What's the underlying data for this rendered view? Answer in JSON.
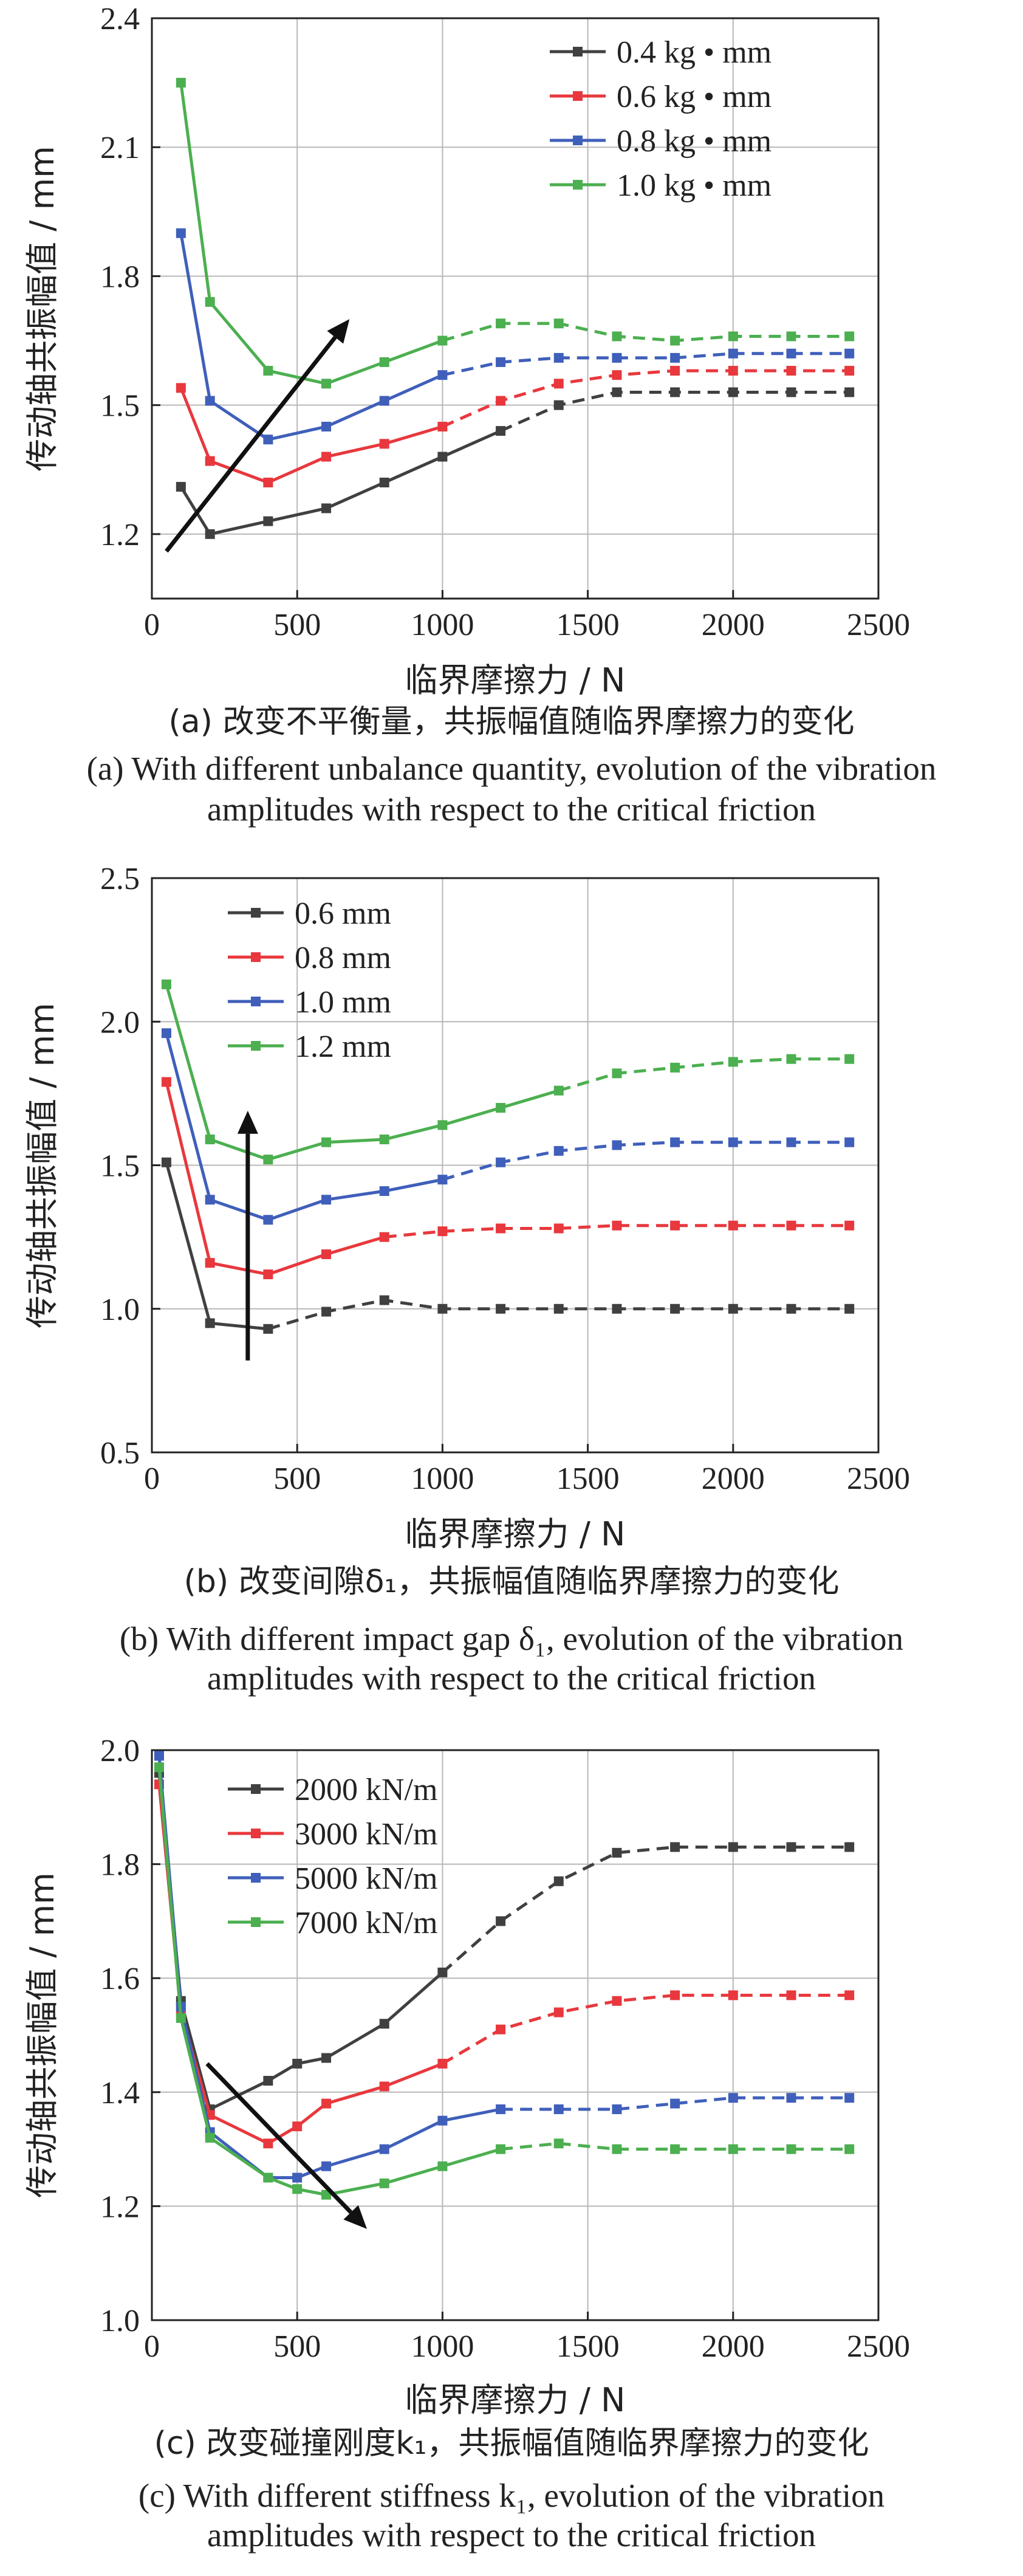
{
  "chart_data": [
    {
      "type": "line",
      "ylabel": "传动轴共振幅值 / mm",
      "xlabel": "临界摩擦力 / N",
      "xlim": [
        0,
        2500
      ],
      "ylim": [
        1.05,
        2.4
      ],
      "xticks": [
        0,
        500,
        1000,
        1500,
        2000,
        2500
      ],
      "yticks": [
        1.2,
        1.5,
        1.8,
        2.1,
        2.4
      ],
      "ytick_labels": [
        "1.2",
        "1.5",
        "1.8",
        "2.1",
        "2.4"
      ],
      "grid": true,
      "legend_position": "top-right",
      "trend_arrow": {
        "from": [
          50,
          1.16
        ],
        "to": [
          680,
          1.7
        ]
      },
      "caption_zh": "(a) 改变不平衡量，共振幅值随临界摩擦力的变化",
      "caption_en": [
        "(a) With different unbalance quantity, evolution of the vibration",
        "amplitudes with respect to the critical friction"
      ],
      "series": [
        {
          "name": "0.4 kg • mm",
          "color": "#404040",
          "x": [
            100,
            200,
            400,
            600,
            800,
            1000,
            1200,
            1400,
            1600,
            1800,
            2000,
            2200,
            2400
          ],
          "y": [
            1.31,
            1.2,
            1.23,
            1.26,
            1.32,
            1.38,
            1.44,
            1.5,
            1.53,
            1.53,
            1.53,
            1.53,
            1.53
          ],
          "solid_until_index": 6
        },
        {
          "name": "0.6 kg • mm",
          "color": "#e8383d",
          "x": [
            100,
            200,
            400,
            600,
            800,
            1000,
            1200,
            1400,
            1600,
            1800,
            2000,
            2200,
            2400
          ],
          "y": [
            1.54,
            1.37,
            1.32,
            1.38,
            1.41,
            1.45,
            1.51,
            1.55,
            1.57,
            1.58,
            1.58,
            1.58,
            1.58
          ],
          "solid_until_index": 5
        },
        {
          "name": "0.8 kg • mm",
          "color": "#3f5fba",
          "x": [
            100,
            200,
            400,
            600,
            800,
            1000,
            1200,
            1400,
            1600,
            1800,
            2000,
            2200,
            2400
          ],
          "y": [
            1.9,
            1.51,
            1.42,
            1.45,
            1.51,
            1.57,
            1.6,
            1.61,
            1.61,
            1.61,
            1.62,
            1.62,
            1.62
          ],
          "solid_until_index": 5
        },
        {
          "name": "1.0 kg • mm",
          "color": "#4caf50",
          "x": [
            100,
            200,
            400,
            600,
            800,
            1000,
            1200,
            1400,
            1600,
            1800,
            2000,
            2200,
            2400
          ],
          "y": [
            2.25,
            1.74,
            1.58,
            1.55,
            1.6,
            1.65,
            1.69,
            1.69,
            1.66,
            1.65,
            1.66,
            1.66,
            1.66
          ],
          "solid_until_index": 5
        }
      ]
    },
    {
      "type": "line",
      "ylabel": "传动轴共振幅值 / mm",
      "xlabel": "临界摩擦力 / N",
      "xlim": [
        0,
        2500
      ],
      "ylim": [
        0.5,
        2.5
      ],
      "xticks": [
        0,
        500,
        1000,
        1500,
        2000,
        2500
      ],
      "yticks": [
        0.5,
        1.0,
        1.5,
        2.0,
        2.5
      ],
      "ytick_labels": [
        "0.5",
        "1.0",
        "1.5",
        "2.0",
        "2.5"
      ],
      "grid": true,
      "legend_position": "top-left",
      "trend_arrow": {
        "from": [
          330,
          0.82
        ],
        "to": [
          330,
          1.69
        ]
      },
      "caption_zh": "(b) 改变间隙δ₁，共振幅值随临界摩擦力的变化",
      "caption_en": [
        "(b) With different impact gap δ₁, evolution of the vibration",
        "amplitudes with respect to the critical friction"
      ],
      "series": [
        {
          "name": "0.6 mm",
          "color": "#404040",
          "x": [
            50,
            200,
            400,
            600,
            800,
            1000,
            1200,
            1400,
            1600,
            1800,
            2000,
            2200,
            2400
          ],
          "y": [
            1.51,
            0.95,
            0.93,
            0.99,
            1.03,
            1.0,
            1.0,
            1.0,
            1.0,
            1.0,
            1.0,
            1.0,
            1.0
          ],
          "solid_until_index": 2
        },
        {
          "name": "0.8 mm",
          "color": "#e8383d",
          "x": [
            50,
            200,
            400,
            600,
            800,
            1000,
            1200,
            1400,
            1600,
            1800,
            2000,
            2200,
            2400
          ],
          "y": [
            1.79,
            1.16,
            1.12,
            1.19,
            1.25,
            1.27,
            1.28,
            1.28,
            1.29,
            1.29,
            1.29,
            1.29,
            1.29
          ],
          "solid_until_index": 4
        },
        {
          "name": "1.0 mm",
          "color": "#3f5fba",
          "x": [
            50,
            200,
            400,
            600,
            800,
            1000,
            1200,
            1400,
            1600,
            1800,
            2000,
            2200,
            2400
          ],
          "y": [
            1.96,
            1.38,
            1.31,
            1.38,
            1.41,
            1.45,
            1.51,
            1.55,
            1.57,
            1.58,
            1.58,
            1.58,
            1.58
          ],
          "solid_until_index": 5
        },
        {
          "name": "1.2 mm",
          "color": "#4caf50",
          "x": [
            50,
            200,
            400,
            600,
            800,
            1000,
            1200,
            1400,
            1600,
            1800,
            2000,
            2200,
            2400
          ],
          "y": [
            2.13,
            1.59,
            1.52,
            1.58,
            1.59,
            1.64,
            1.7,
            1.76,
            1.82,
            1.84,
            1.86,
            1.87,
            1.87
          ],
          "solid_until_index": 7
        }
      ]
    },
    {
      "type": "line",
      "ylabel": "传动轴共振幅值 / mm",
      "xlabel": "临界摩擦力 / N",
      "xlim": [
        0,
        2500
      ],
      "ylim": [
        1.0,
        2.0
      ],
      "xticks": [
        0,
        500,
        1000,
        1500,
        2000,
        2500
      ],
      "yticks": [
        1.0,
        1.2,
        1.4,
        1.6,
        1.8,
        2.0
      ],
      "ytick_labels": [
        "1.0",
        "1.2",
        "1.4",
        "1.6",
        "1.8",
        "2.0"
      ],
      "grid": true,
      "legend_position": "top-left",
      "trend_arrow": {
        "from": [
          190,
          1.45
        ],
        "to": [
          740,
          1.16
        ]
      },
      "caption_zh": "(c) 改变碰撞刚度k₁，共振幅值随临界摩擦力的变化",
      "caption_en": [
        "(c) With different stiffness k₁, evolution of the vibration",
        "amplitudes with respect to the critical friction"
      ],
      "series": [
        {
          "name": "2000 kN/m",
          "color": "#404040",
          "x": [
            25,
            100,
            200,
            400,
            500,
            600,
            800,
            1000,
            1200,
            1400,
            1600,
            1800,
            2000,
            2200,
            2400
          ],
          "y": [
            1.96,
            1.56,
            1.37,
            1.42,
            1.45,
            1.46,
            1.52,
            1.61,
            1.7,
            1.77,
            1.82,
            1.83,
            1.83,
            1.83,
            1.83
          ],
          "solid_until_index": 7
        },
        {
          "name": "3000 kN/m",
          "color": "#e8383d",
          "x": [
            25,
            100,
            200,
            400,
            500,
            600,
            800,
            1000,
            1200,
            1400,
            1600,
            1800,
            2000,
            2200,
            2400
          ],
          "y": [
            1.94,
            1.54,
            1.36,
            1.31,
            1.34,
            1.38,
            1.41,
            1.45,
            1.51,
            1.54,
            1.56,
            1.57,
            1.57,
            1.57,
            1.57
          ],
          "solid_until_index": 7
        },
        {
          "name": "5000 kN/m",
          "color": "#3f5fba",
          "x": [
            25,
            100,
            200,
            400,
            500,
            600,
            800,
            1000,
            1200,
            1400,
            1600,
            1800,
            2000,
            2200,
            2400
          ],
          "y": [
            1.99,
            1.55,
            1.33,
            1.25,
            1.25,
            1.27,
            1.3,
            1.35,
            1.37,
            1.37,
            1.37,
            1.38,
            1.39,
            1.39,
            1.39
          ],
          "solid_until_index": 8
        },
        {
          "name": "7000 kN/m",
          "color": "#4caf50",
          "x": [
            25,
            100,
            200,
            400,
            500,
            600,
            800,
            1000,
            1200,
            1400,
            1600,
            1800,
            2000,
            2200,
            2400
          ],
          "y": [
            1.97,
            1.53,
            1.32,
            1.25,
            1.23,
            1.22,
            1.24,
            1.27,
            1.3,
            1.31,
            1.3,
            1.3,
            1.3,
            1.3,
            1.3
          ],
          "solid_until_index": 8
        }
      ]
    }
  ]
}
